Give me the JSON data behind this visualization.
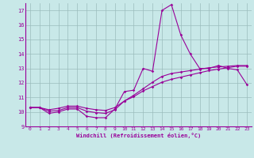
{
  "title": "",
  "xlabel": "Windchill (Refroidissement éolien,°C)",
  "ylabel": "",
  "bg_color": "#c8e8e8",
  "line_color": "#990099",
  "grid_color": "#9bbcbc",
  "xlim": [
    -0.5,
    23.5
  ],
  "ylim": [
    9,
    17.5
  ],
  "yticks": [
    9,
    10,
    11,
    12,
    13,
    14,
    15,
    16,
    17
  ],
  "xticks": [
    0,
    1,
    2,
    3,
    4,
    5,
    6,
    7,
    8,
    9,
    10,
    11,
    12,
    13,
    14,
    15,
    16,
    17,
    18,
    19,
    20,
    21,
    22,
    23
  ],
  "line1_x": [
    0,
    1,
    2,
    3,
    4,
    5,
    6,
    7,
    8,
    9,
    10,
    11,
    12,
    13,
    14,
    15,
    16,
    17,
    18,
    19,
    20,
    21,
    22,
    23
  ],
  "line1_y": [
    10.3,
    10.3,
    9.9,
    10.0,
    10.2,
    10.2,
    9.7,
    9.6,
    9.6,
    10.2,
    11.4,
    11.5,
    13.0,
    12.8,
    17.0,
    17.4,
    15.3,
    14.0,
    13.0,
    13.0,
    13.2,
    13.0,
    12.9,
    11.9
  ],
  "line2_x": [
    0,
    1,
    2,
    3,
    4,
    5,
    6,
    7,
    8,
    9,
    10,
    11,
    12,
    13,
    14,
    15,
    16,
    17,
    18,
    19,
    20,
    21,
    22,
    23
  ],
  "line2_y": [
    10.3,
    10.3,
    10.05,
    10.1,
    10.3,
    10.3,
    10.05,
    9.95,
    9.9,
    10.15,
    10.75,
    11.15,
    11.6,
    12.05,
    12.45,
    12.65,
    12.75,
    12.85,
    12.95,
    13.05,
    13.1,
    13.15,
    13.2,
    13.2
  ],
  "line3_x": [
    0,
    1,
    2,
    3,
    4,
    5,
    6,
    7,
    8,
    9,
    10,
    11,
    12,
    13,
    14,
    15,
    16,
    17,
    18,
    19,
    20,
    21,
    22,
    23
  ],
  "line3_y": [
    10.3,
    10.3,
    10.15,
    10.25,
    10.4,
    10.4,
    10.25,
    10.15,
    10.1,
    10.3,
    10.75,
    11.05,
    11.45,
    11.75,
    12.05,
    12.25,
    12.4,
    12.55,
    12.7,
    12.85,
    12.95,
    13.05,
    13.15,
    13.15
  ]
}
